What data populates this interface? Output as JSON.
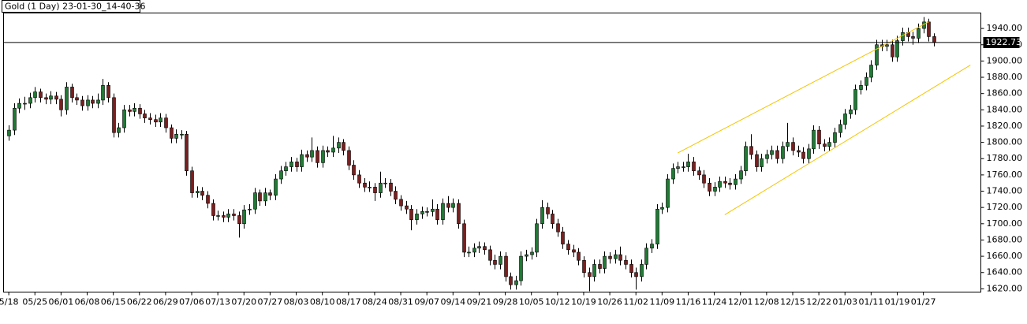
{
  "chart_data": {
    "type": "candlestick",
    "title": "Gold (1 Day) 23-01-30_14-40-36",
    "up_color": "#1f7a34",
    "down_color": "#7a1f1f",
    "wick_color": "#000000",
    "xlim": [
      -1,
      186
    ],
    "ylim": [
      1616,
      1959
    ],
    "yticks": [
      {
        "value": 1620,
        "label": "1620.00"
      },
      {
        "value": 1640,
        "label": "1640.00"
      },
      {
        "value": 1660,
        "label": "1660.00"
      },
      {
        "value": 1680,
        "label": "1680.00"
      },
      {
        "value": 1700,
        "label": "1700.00"
      },
      {
        "value": 1720,
        "label": "1720.00"
      },
      {
        "value": 1740,
        "label": "1740.00"
      },
      {
        "value": 1760,
        "label": "1760.00"
      },
      {
        "value": 1780,
        "label": "1780.00"
      },
      {
        "value": 1800,
        "label": "1800.00"
      },
      {
        "value": 1820,
        "label": "1820.00"
      },
      {
        "value": 1840,
        "label": "1840.00"
      },
      {
        "value": 1860,
        "label": "1860.00"
      },
      {
        "value": 1880,
        "label": "1880.00"
      },
      {
        "value": 1900,
        "label": "1900.00"
      },
      {
        "value": 1920,
        "label": "1920.00"
      },
      {
        "value": 1940,
        "label": "1940.00"
      }
    ],
    "xticks": [
      {
        "value": 0,
        "label": "5/18"
      },
      {
        "value": 5,
        "label": "05/25"
      },
      {
        "value": 10,
        "label": "06/01"
      },
      {
        "value": 15,
        "label": "06/08"
      },
      {
        "value": 20,
        "label": "06/15"
      },
      {
        "value": 25,
        "label": "06/22"
      },
      {
        "value": 30,
        "label": "06/29"
      },
      {
        "value": 35,
        "label": "07/06"
      },
      {
        "value": 40,
        "label": "07/13"
      },
      {
        "value": 45,
        "label": "07/20"
      },
      {
        "value": 50,
        "label": "07/27"
      },
      {
        "value": 55,
        "label": "08/03"
      },
      {
        "value": 60,
        "label": "08/10"
      },
      {
        "value": 65,
        "label": "08/17"
      },
      {
        "value": 70,
        "label": "08/24"
      },
      {
        "value": 75,
        "label": "08/31"
      },
      {
        "value": 80,
        "label": "09/07"
      },
      {
        "value": 85,
        "label": "09/14"
      },
      {
        "value": 90,
        "label": "09/21"
      },
      {
        "value": 95,
        "label": "09/28"
      },
      {
        "value": 100,
        "label": "10/05"
      },
      {
        "value": 105,
        "label": "10/12"
      },
      {
        "value": 110,
        "label": "10/19"
      },
      {
        "value": 115,
        "label": "10/26"
      },
      {
        "value": 120,
        "label": "11/02"
      },
      {
        "value": 125,
        "label": "11/09"
      },
      {
        "value": 130,
        "label": "11/16"
      },
      {
        "value": 135,
        "label": "11/24"
      },
      {
        "value": 140,
        "label": "12/01"
      },
      {
        "value": 145,
        "label": "12/08"
      },
      {
        "value": 150,
        "label": "12/15"
      },
      {
        "value": 155,
        "label": "12/22"
      },
      {
        "value": 160,
        "label": "01/03"
      },
      {
        "value": 165,
        "label": "01/11"
      },
      {
        "value": 170,
        "label": "01/19"
      },
      {
        "value": 175,
        "label": "01/27"
      }
    ],
    "trendlines": [
      {
        "color": "#f5c400",
        "x": [
          128,
          176
        ],
        "values": [
          1787,
          1948
        ]
      },
      {
        "color": "#f5c400",
        "x": [
          137,
          184
        ],
        "values": [
          1711,
          1895
        ]
      }
    ],
    "ohlc": [
      [
        1808,
        1821,
        1802,
        1815
      ],
      [
        1815,
        1848,
        1809,
        1842
      ],
      [
        1842,
        1854,
        1836,
        1848
      ],
      [
        1848,
        1856,
        1840,
        1848
      ],
      [
        1848,
        1861,
        1842,
        1855
      ],
      [
        1855,
        1868,
        1849,
        1862
      ],
      [
        1862,
        1866,
        1849,
        1855
      ],
      [
        1855,
        1860,
        1847,
        1853
      ],
      [
        1853,
        1863,
        1847,
        1857
      ],
      [
        1857,
        1862,
        1847,
        1853
      ],
      [
        1853,
        1858,
        1832,
        1840
      ],
      [
        1840,
        1874,
        1834,
        1868
      ],
      [
        1868,
        1872,
        1849,
        1855
      ],
      [
        1855,
        1860,
        1846,
        1852
      ],
      [
        1852,
        1857,
        1839,
        1845
      ],
      [
        1845,
        1858,
        1839,
        1852
      ],
      [
        1852,
        1857,
        1842,
        1848
      ],
      [
        1848,
        1860,
        1842,
        1852
      ],
      [
        1852,
        1878,
        1846,
        1870
      ],
      [
        1870,
        1874,
        1849,
        1855
      ],
      [
        1855,
        1860,
        1806,
        1812
      ],
      [
        1812,
        1824,
        1806,
        1818
      ],
      [
        1818,
        1846,
        1812,
        1840
      ],
      [
        1840,
        1846,
        1832,
        1838
      ],
      [
        1838,
        1848,
        1832,
        1842
      ],
      [
        1842,
        1847,
        1829,
        1835
      ],
      [
        1835,
        1840,
        1824,
        1830
      ],
      [
        1830,
        1836,
        1822,
        1828
      ],
      [
        1828,
        1834,
        1819,
        1825
      ],
      [
        1825,
        1836,
        1819,
        1830
      ],
      [
        1830,
        1835,
        1812,
        1818
      ],
      [
        1818,
        1822,
        1799,
        1805
      ],
      [
        1805,
        1816,
        1799,
        1810
      ],
      [
        1810,
        1815,
        1804,
        1810
      ],
      [
        1810,
        1814,
        1759,
        1765
      ],
      [
        1765,
        1770,
        1732,
        1738
      ],
      [
        1738,
        1746,
        1732,
        1740
      ],
      [
        1740,
        1745,
        1729,
        1735
      ],
      [
        1735,
        1740,
        1719,
        1725
      ],
      [
        1725,
        1730,
        1704,
        1710
      ],
      [
        1710,
        1716,
        1704,
        1710
      ],
      [
        1710,
        1715,
        1702,
        1708
      ],
      [
        1708,
        1718,
        1702,
        1712
      ],
      [
        1712,
        1718,
        1704,
        1710
      ],
      [
        1710,
        1715,
        1683,
        1700
      ],
      [
        1700,
        1723,
        1694,
        1717
      ],
      [
        1717,
        1724,
        1711,
        1718
      ],
      [
        1718,
        1744,
        1712,
        1738
      ],
      [
        1738,
        1742,
        1722,
        1728
      ],
      [
        1728,
        1744,
        1722,
        1738
      ],
      [
        1738,
        1742,
        1729,
        1735
      ],
      [
        1735,
        1761,
        1729,
        1755
      ],
      [
        1755,
        1771,
        1749,
        1765
      ],
      [
        1765,
        1776,
        1759,
        1770
      ],
      [
        1770,
        1782,
        1764,
        1776
      ],
      [
        1776,
        1781,
        1764,
        1770
      ],
      [
        1770,
        1791,
        1764,
        1785
      ],
      [
        1785,
        1790,
        1776,
        1782
      ],
      [
        1782,
        1806,
        1776,
        1790
      ],
      [
        1790,
        1795,
        1769,
        1775
      ],
      [
        1775,
        1796,
        1769,
        1790
      ],
      [
        1790,
        1795,
        1782,
        1788
      ],
      [
        1788,
        1808,
        1782,
        1793
      ],
      [
        1793,
        1806,
        1787,
        1800
      ],
      [
        1800,
        1804,
        1784,
        1790
      ],
      [
        1790,
        1795,
        1766,
        1772
      ],
      [
        1772,
        1778,
        1754,
        1760
      ],
      [
        1760,
        1766,
        1744,
        1750
      ],
      [
        1750,
        1756,
        1739,
        1745
      ],
      [
        1745,
        1752,
        1739,
        1745
      ],
      [
        1745,
        1750,
        1728,
        1738
      ],
      [
        1738,
        1764,
        1732,
        1750
      ],
      [
        1750,
        1756,
        1744,
        1750
      ],
      [
        1750,
        1755,
        1734,
        1740
      ],
      [
        1740,
        1746,
        1724,
        1730
      ],
      [
        1730,
        1735,
        1716,
        1722
      ],
      [
        1722,
        1728,
        1712,
        1718
      ],
      [
        1718,
        1723,
        1692,
        1705
      ],
      [
        1705,
        1718,
        1699,
        1712
      ],
      [
        1712,
        1721,
        1706,
        1715
      ],
      [
        1715,
        1720,
        1709,
        1715
      ],
      [
        1715,
        1730,
        1709,
        1718
      ],
      [
        1718,
        1724,
        1699,
        1705
      ],
      [
        1705,
        1731,
        1699,
        1725
      ],
      [
        1725,
        1734,
        1714,
        1720
      ],
      [
        1720,
        1731,
        1714,
        1725
      ],
      [
        1725,
        1730,
        1694,
        1700
      ],
      [
        1700,
        1705,
        1659,
        1665
      ],
      [
        1665,
        1672,
        1659,
        1665
      ],
      [
        1665,
        1676,
        1659,
        1670
      ],
      [
        1670,
        1678,
        1664,
        1672
      ],
      [
        1672,
        1677,
        1662,
        1668
      ],
      [
        1668,
        1673,
        1649,
        1655
      ],
      [
        1655,
        1662,
        1644,
        1650
      ],
      [
        1650,
        1666,
        1644,
        1660
      ],
      [
        1660,
        1665,
        1629,
        1635
      ],
      [
        1635,
        1640,
        1619,
        1625
      ],
      [
        1625,
        1636,
        1619,
        1630
      ],
      [
        1630,
        1666,
        1624,
        1660
      ],
      [
        1660,
        1668,
        1654,
        1662
      ],
      [
        1662,
        1671,
        1656,
        1665
      ],
      [
        1665,
        1706,
        1659,
        1700
      ],
      [
        1700,
        1729,
        1694,
        1720
      ],
      [
        1720,
        1726,
        1706,
        1712
      ],
      [
        1712,
        1717,
        1694,
        1700
      ],
      [
        1700,
        1706,
        1684,
        1690
      ],
      [
        1690,
        1696,
        1669,
        1675
      ],
      [
        1675,
        1680,
        1662,
        1668
      ],
      [
        1668,
        1674,
        1659,
        1665
      ],
      [
        1665,
        1670,
        1649,
        1655
      ],
      [
        1655,
        1660,
        1634,
        1640
      ],
      [
        1640,
        1646,
        1617,
        1635
      ],
      [
        1635,
        1656,
        1629,
        1650
      ],
      [
        1650,
        1656,
        1639,
        1645
      ],
      [
        1645,
        1666,
        1639,
        1660
      ],
      [
        1660,
        1665,
        1651,
        1657
      ],
      [
        1657,
        1668,
        1651,
        1662
      ],
      [
        1662,
        1672,
        1649,
        1655
      ],
      [
        1655,
        1661,
        1644,
        1650
      ],
      [
        1650,
        1656,
        1634,
        1640
      ],
      [
        1640,
        1646,
        1619,
        1635
      ],
      [
        1635,
        1656,
        1629,
        1650
      ],
      [
        1650,
        1676,
        1644,
        1670
      ],
      [
        1670,
        1681,
        1664,
        1675
      ],
      [
        1675,
        1724,
        1669,
        1718
      ],
      [
        1718,
        1726,
        1712,
        1720
      ],
      [
        1720,
        1761,
        1714,
        1755
      ],
      [
        1755,
        1774,
        1749,
        1768
      ],
      [
        1768,
        1776,
        1762,
        1770
      ],
      [
        1770,
        1776,
        1764,
        1770
      ],
      [
        1770,
        1786,
        1764,
        1776
      ],
      [
        1776,
        1782,
        1759,
        1765
      ],
      [
        1765,
        1770,
        1754,
        1760
      ],
      [
        1760,
        1766,
        1744,
        1750
      ],
      [
        1750,
        1756,
        1734,
        1740
      ],
      [
        1740,
        1751,
        1734,
        1745
      ],
      [
        1745,
        1758,
        1739,
        1752
      ],
      [
        1752,
        1758,
        1744,
        1750
      ],
      [
        1750,
        1756,
        1742,
        1748
      ],
      [
        1748,
        1761,
        1742,
        1755
      ],
      [
        1755,
        1771,
        1749,
        1765
      ],
      [
        1765,
        1801,
        1759,
        1795
      ],
      [
        1795,
        1810,
        1779,
        1785
      ],
      [
        1785,
        1790,
        1764,
        1770
      ],
      [
        1770,
        1786,
        1764,
        1780
      ],
      [
        1780,
        1791,
        1774,
        1785
      ],
      [
        1785,
        1796,
        1779,
        1790
      ],
      [
        1790,
        1796,
        1774,
        1780
      ],
      [
        1780,
        1801,
        1774,
        1795
      ],
      [
        1795,
        1824,
        1789,
        1800
      ],
      [
        1800,
        1806,
        1784,
        1790
      ],
      [
        1790,
        1796,
        1782,
        1788
      ],
      [
        1788,
        1794,
        1774,
        1780
      ],
      [
        1780,
        1798,
        1774,
        1792
      ],
      [
        1792,
        1821,
        1786,
        1815
      ],
      [
        1815,
        1820,
        1792,
        1798
      ],
      [
        1798,
        1804,
        1789,
        1795
      ],
      [
        1795,
        1806,
        1789,
        1800
      ],
      [
        1800,
        1818,
        1794,
        1812
      ],
      [
        1812,
        1828,
        1806,
        1822
      ],
      [
        1822,
        1841,
        1816,
        1835
      ],
      [
        1835,
        1846,
        1829,
        1840
      ],
      [
        1840,
        1871,
        1834,
        1865
      ],
      [
        1865,
        1876,
        1859,
        1870
      ],
      [
        1870,
        1886,
        1864,
        1880
      ],
      [
        1880,
        1901,
        1874,
        1895
      ],
      [
        1895,
        1926,
        1889,
        1920
      ],
      [
        1920,
        1926,
        1912,
        1918
      ],
      [
        1918,
        1926,
        1912,
        1920
      ],
      [
        1920,
        1926,
        1899,
        1905
      ],
      [
        1905,
        1931,
        1899,
        1925
      ],
      [
        1925,
        1941,
        1919,
        1935
      ],
      [
        1935,
        1941,
        1924,
        1930
      ],
      [
        1930,
        1936,
        1920,
        1928
      ],
      [
        1928,
        1946,
        1922,
        1940
      ],
      [
        1940,
        1954,
        1934,
        1948
      ],
      [
        1948,
        1952,
        1924,
        1930
      ],
      [
        1930,
        1934,
        1918,
        1922.73
      ]
    ]
  }
}
